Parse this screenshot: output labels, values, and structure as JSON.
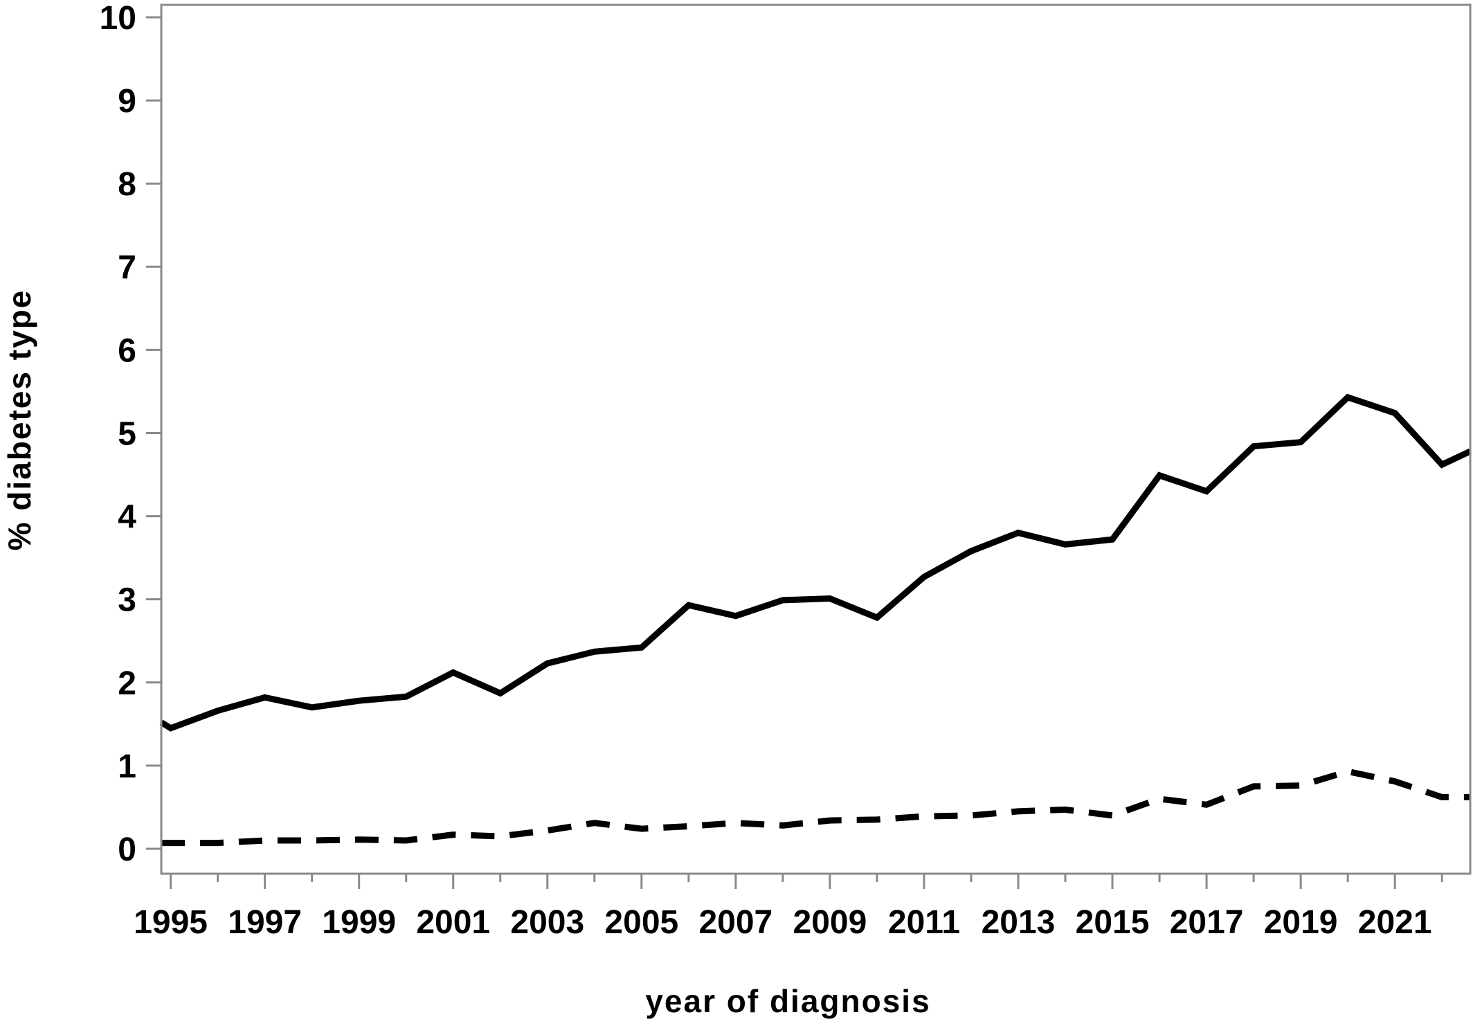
{
  "chart_data": {
    "type": "line",
    "xlabel": "year of diagnosis",
    "ylabel": "% diabetes type",
    "xlim": [
      1994.8,
      2022.6
    ],
    "ylim": [
      -0.3,
      10.15
    ],
    "yticks": [
      0,
      1,
      2,
      3,
      4,
      5,
      6,
      7,
      8,
      9,
      10
    ],
    "xticks": [
      1995,
      1996,
      1997,
      1998,
      1999,
      2000,
      2001,
      2002,
      2003,
      2004,
      2005,
      2006,
      2007,
      2008,
      2009,
      2010,
      2011,
      2012,
      2013,
      2014,
      2015,
      2016,
      2017,
      2018,
      2019,
      2020,
      2021,
      2022
    ],
    "xtick_labels": [
      1995,
      1997,
      1999,
      2001,
      2003,
      2005,
      2007,
      2009,
      2011,
      2013,
      2015,
      2017,
      2019,
      2021
    ],
    "grid": false,
    "series": [
      {
        "style": "solid",
        "x": [
          1994.8,
          1995,
          1996,
          1997,
          1998,
          1999,
          2000,
          2001,
          2002,
          2003,
          2004,
          2005,
          2006,
          2007,
          2008,
          2009,
          2010,
          2011,
          2012,
          2013,
          2014,
          2015,
          2016,
          2017,
          2018,
          2019,
          2020,
          2021,
          2022,
          2022.6
        ],
        "values": [
          1.52,
          1.45,
          1.66,
          1.82,
          1.7,
          1.78,
          1.83,
          2.12,
          1.87,
          2.23,
          2.37,
          2.42,
          2.93,
          2.8,
          2.99,
          3.01,
          2.78,
          3.27,
          3.58,
          3.8,
          3.66,
          3.72,
          4.49,
          4.3,
          4.84,
          4.89,
          5.43,
          5.24,
          4.62,
          4.78
        ]
      },
      {
        "style": "dashed",
        "x": [
          1994.8,
          1995,
          1996,
          1997,
          1998,
          1999,
          2000,
          2001,
          2002,
          2003,
          2004,
          2005,
          2006,
          2007,
          2008,
          2009,
          2010,
          2011,
          2012,
          2013,
          2014,
          2015,
          2016,
          2017,
          2018,
          2019,
          2020,
          2021,
          2022,
          2022.6
        ],
        "values": [
          0.07,
          0.07,
          0.07,
          0.1,
          0.1,
          0.11,
          0.1,
          0.17,
          0.15,
          0.22,
          0.31,
          0.24,
          0.27,
          0.31,
          0.28,
          0.34,
          0.35,
          0.39,
          0.4,
          0.45,
          0.47,
          0.4,
          0.6,
          0.53,
          0.75,
          0.76,
          0.93,
          0.81,
          0.62,
          0.62
        ]
      }
    ]
  }
}
